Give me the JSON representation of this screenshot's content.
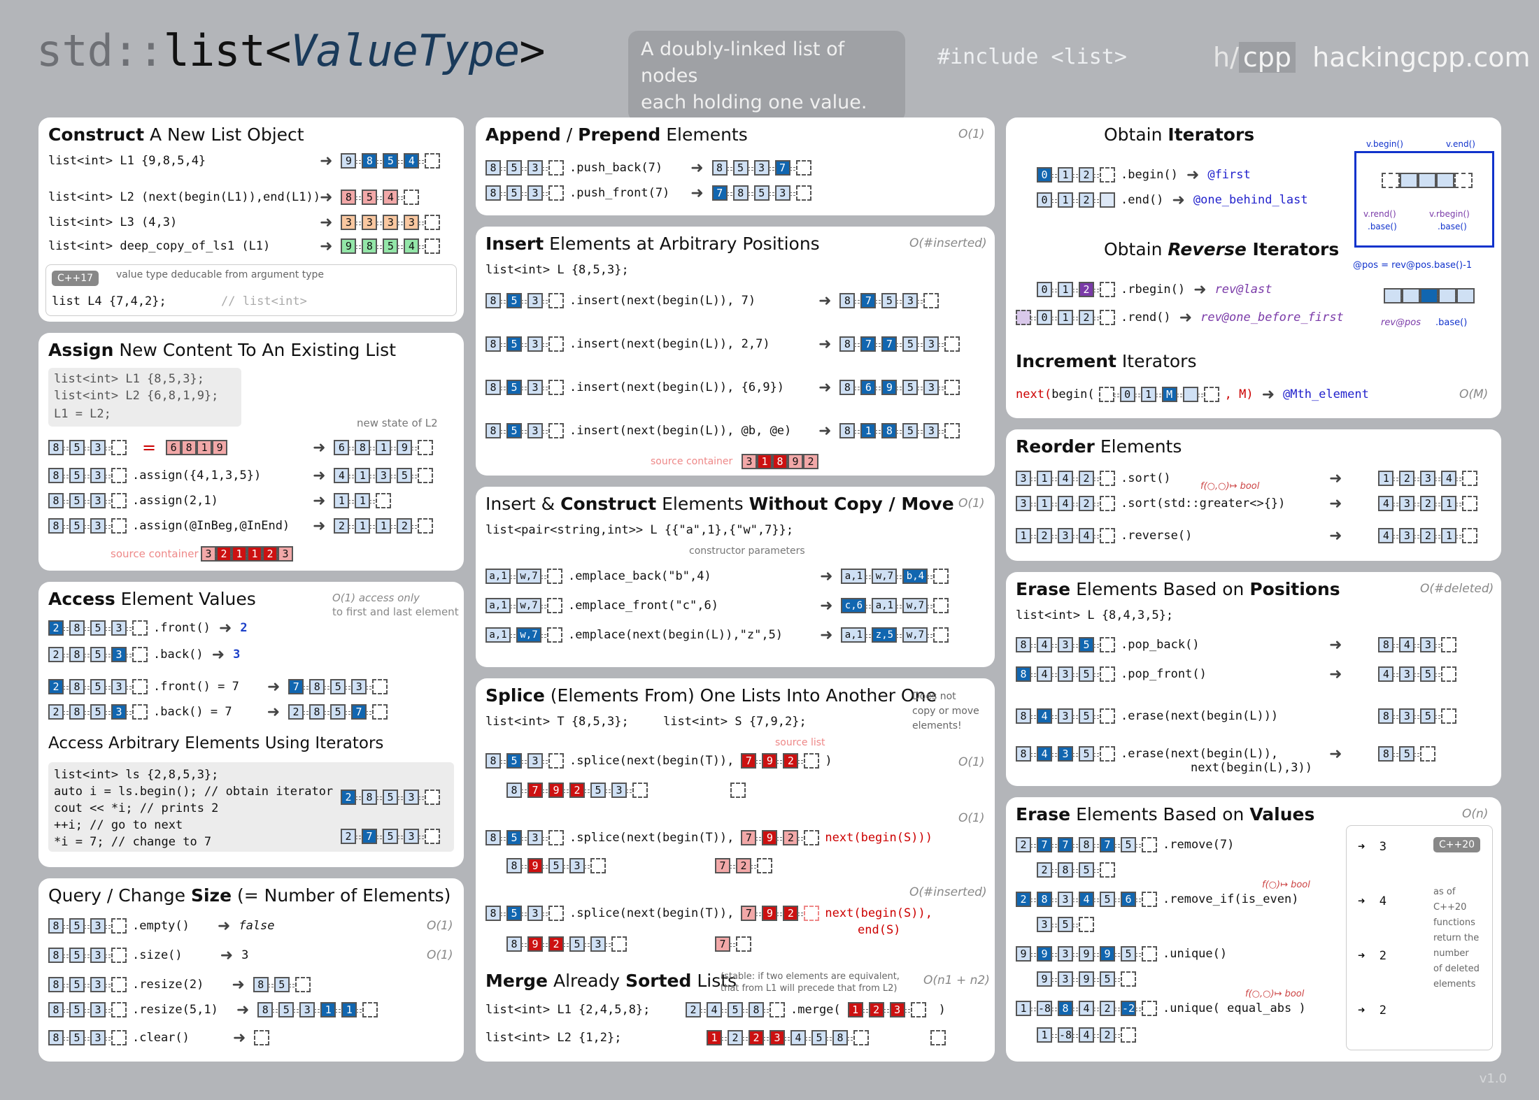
{
  "header": {
    "title_std": "std::",
    "title_list": "list<",
    "title_vt": "ValueType",
    "title_end": ">",
    "tagline_1": "A doubly-linked list of nodes",
    "tagline_2": "each holding one value.",
    "include": "#include <list>",
    "brand_h": "h/",
    "brand_cpp": "cpp",
    "brand_site": "hackingcpp.com"
  },
  "construct": {
    "title_b": "Construct",
    "title_r": " A New List Object",
    "lines": [
      "list<int> L1 {9,8,5,4}",
      "list<int> L2 (next(begin(L1)),end(L1))",
      "list<int> L3 (4,3)",
      "list<int> deep_copy_of_ls1 (L1)"
    ],
    "results": [
      [
        "9",
        "8",
        "5",
        "4"
      ],
      [
        "8",
        "5",
        "4"
      ],
      [
        "3",
        "3",
        "3",
        "3"
      ],
      [
        "9",
        "8",
        "5",
        "4"
      ]
    ],
    "cpp17": "C++17",
    "note": "value type deducable from argument type",
    "l4_code": "list      L4  {7,4,2};",
    "l4_comment": "// list<int>"
  },
  "assign": {
    "title_b": "Assign",
    "title_r": " New Content To An Existing List",
    "box": [
      "list<int> L1 {8,5,3};",
      "list<int> L2 {6,8,1,9};",
      "L1        =   L2;"
    ],
    "new_state": "new state of L2",
    "eq": "=",
    "eq_vals": [
      "6",
      "8",
      "1",
      "9"
    ],
    "calls": [
      ".assign({4,1,3,5})",
      ".assign(2,1)",
      ".assign(@InBeg,@InEnd)"
    ],
    "results": [
      [
        "6",
        "8",
        "1",
        "9"
      ],
      [
        "4",
        "1",
        "3",
        "5"
      ],
      [
        "1",
        "1"
      ],
      [
        "2",
        "1",
        "1",
        "2"
      ]
    ],
    "src": "source container",
    "src_vals": [
      "3",
      "2",
      "1",
      "1",
      "2",
      "3"
    ]
  },
  "access": {
    "title_b": "Access",
    "title_r": " Element Values",
    "cx1": "O(1) access only",
    "cx2": "to first and last element",
    "calls": [
      ".front()",
      ".back()",
      ".front() = 7",
      ".back() = 7"
    ],
    "vals": [
      "2",
      "3"
    ],
    "sub_title": "Access Arbitrary Elements Using Iterators",
    "code": [
      "list<int> ls {2,8,5,3};",
      "auto i = ls.begin(); // obtain iterator",
      "cout << *i;          // prints 2",
      "++i;                 // go to next",
      "*i = 7;              // change to 7"
    ]
  },
  "query": {
    "title_b": "Size",
    "title_pre": "Query / Change ",
    "title_r": "  (= Number of Elements)",
    "calls": [
      ".empty()",
      ".size()",
      ".resize(2)",
      ".resize(5,1)",
      ".clear()"
    ],
    "vals": [
      "false",
      "3"
    ],
    "cx": "O(1)"
  },
  "append": {
    "title_b1": "Append",
    "title_sep": " / ",
    "title_b2": "Prepend",
    "title_r": " Elements",
    "cx": "O(1)",
    "calls": [
      ".push_back(7)",
      ".push_front(7)"
    ]
  },
  "insert": {
    "title_b": "Insert",
    "title_r": " Elements at Arbitrary Positions",
    "cx": "O(#inserted)",
    "decl": "list<int> L {8,5,3};",
    "calls": [
      ".insert(next(begin(L)), 7)",
      ".insert(next(begin(L)), 2,7)",
      ".insert(next(begin(L)), {6,9})",
      ".insert(next(begin(L)), @b, @e)"
    ],
    "src": "source container",
    "src_vals": [
      "3",
      "1",
      "8",
      "9",
      "2"
    ]
  },
  "emplace": {
    "title_pre": "Insert & ",
    "title_b": "Construct",
    "title_mid": " Elements ",
    "title_b2": "Without Copy / Move",
    "cx": "O(1)",
    "decl": "list<pair<string,int>> L {{\"a\",1},{\"w\",7}};",
    "ctor": "constructor parameters",
    "calls": [
      ".emplace_back(\"b\",4)",
      ".emplace_front(\"c\",6)",
      ".emplace(next(begin(L)),\"z\",5)"
    ]
  },
  "splice": {
    "title_b": "Splice",
    "title_r": " (Elements From) One Lists Into Another One",
    "note": [
      "Does not",
      "copy or move",
      "elements!"
    ],
    "decl_t": "list<int> T {8,5,3};",
    "decl_s": "list<int> S {7,9,2};",
    "src": "source list",
    "calls": [
      ".splice(next(begin(T)),",
      ".splice(next(begin(T)),",
      ".splice(next(begin(T)),"
    ],
    "args": [
      ")",
      "next(begin(S)))",
      "next(begin(S)),"
    ],
    "args2": "end(S)",
    "cx": [
      "O(1)",
      "O(1)",
      "O(#inserted)"
    ]
  },
  "merge": {
    "title_b": "Merge",
    "title_r": " Already ",
    "title_b2": "Sorted",
    "title_r2": " Lists",
    "note1": "(stable: if two elements are equivalent,",
    "note2": "that from L1 will precede that from L2)",
    "cx": "O(n1 + n2)",
    "decl1": "list<int> L1 {2,4,5,8};",
    "decl2": "list<int> L2 {1,2};",
    "call": ".merge("
  },
  "iterators": {
    "t1_pre": "Obtain ",
    "t1_b": "Iterators",
    "begin": ".begin()",
    "end": ".end()",
    "first": "@first",
    "obl": "@one_behind_last",
    "t2_pre": "Obtain ",
    "t2_b": "Reverse",
    "t2_r": " Iterators",
    "rbegin": ".rbegin()",
    "rend": ".rend()",
    "rlast": "rev@last",
    "robf": "rev@one_before_first",
    "vbegin": "v.begin()",
    "vend": "v.end()",
    "vrend": "v.rend()",
    "vrbegin": "v.rbegin()",
    "base": ".base()",
    "pos_eq": "@pos = rev@pos.base()-1",
    "revpos": "rev@pos",
    "t3_b": "Increment",
    "t3_r": " Iterators",
    "next": "next(",
    "nextb": "begin(",
    "m": ", M)",
    "mth": "@Mth_element",
    "cx": "O(M)"
  },
  "reorder": {
    "title_b": "Reorder",
    "title_r": " Elements",
    "calls": [
      ".sort()",
      ".sort(std::greater<>{})",
      ".reverse()"
    ],
    "fn": "f(○,○)↦ bool"
  },
  "erase_pos": {
    "title_b": "Erase",
    "title_mid": " Elements Based on ",
    "title_b2": "Positions",
    "cx": "O(#deleted)",
    "decl": "list<int> L {8,4,3,5};",
    "calls": [
      ".pop_back()",
      ".pop_front()",
      ".erase(next(begin(L)))",
      ".erase(next(begin(L)),",
      "next(begin(L),3))"
    ]
  },
  "erase_val": {
    "title_b": "Erase",
    "title_mid": " Elements Based on ",
    "title_b2": "Values",
    "cx": "O(n)",
    "calls": [
      ".remove(7)",
      ".remove_if(is_even)",
      ".unique()",
      ".unique( equal_abs )"
    ],
    "fn": "f(○)↦ bool",
    "fn2": "f(○,○)↦ bool",
    "counts": [
      "3",
      "4",
      "2",
      "2"
    ],
    "cpp20": "C++20",
    "note": [
      "as of",
      "C++20",
      "functions",
      "return the",
      "number",
      "of deleted",
      "elements"
    ]
  },
  "version": "v1.0"
}
